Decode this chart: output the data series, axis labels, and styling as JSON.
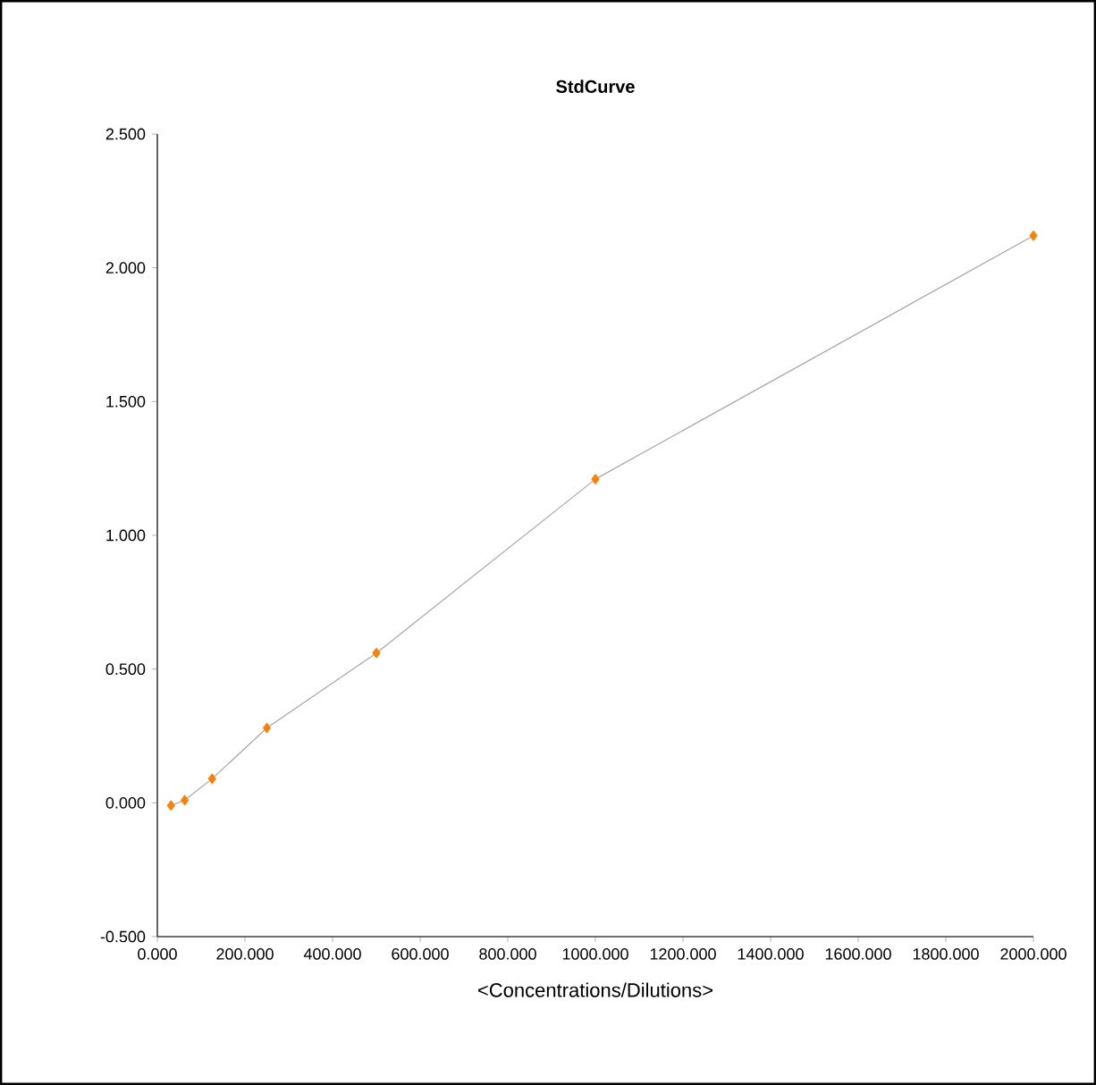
{
  "chart_data": {
    "type": "line",
    "title": "StdCurve",
    "xlabel": "<Concentrations/Dilutions>",
    "x": [
      31.25,
      62.5,
      125,
      250,
      500,
      1000,
      2000
    ],
    "series": [
      {
        "color": "#ff8000",
        "values": [
          -0.01,
          0.01,
          0.09,
          0.28,
          0.56,
          1.21,
          2.12
        ]
      }
    ],
    "xlim": [
      0,
      2000
    ],
    "ylim": [
      -0.5,
      2.5
    ],
    "xticks": [
      {
        "value": 0,
        "label": "0.000"
      },
      {
        "value": 200,
        "label": "200.000"
      },
      {
        "value": 400,
        "label": "400.000"
      },
      {
        "value": 600,
        "label": "600.000"
      },
      {
        "value": 800,
        "label": "800.000"
      },
      {
        "value": 1000,
        "label": "1000.000"
      },
      {
        "value": 1200,
        "label": "1200.000"
      },
      {
        "value": 1400,
        "label": "1400.000"
      },
      {
        "value": 1600,
        "label": "1600.000"
      },
      {
        "value": 1800,
        "label": "1800.000"
      },
      {
        "value": 2000,
        "label": "2000.000"
      }
    ],
    "yticks": [
      {
        "value": -0.5,
        "label": "-0.500"
      },
      {
        "value": 0,
        "label": "0.000"
      },
      {
        "value": 0.5,
        "label": "0.500"
      },
      {
        "value": 1,
        "label": "1.000"
      },
      {
        "value": 1.5,
        "label": "1.500"
      },
      {
        "value": 2,
        "label": "2.000"
      },
      {
        "value": 2.5,
        "label": "2.500"
      }
    ],
    "grid": false,
    "marker": "diamond",
    "line_style": "solid"
  }
}
